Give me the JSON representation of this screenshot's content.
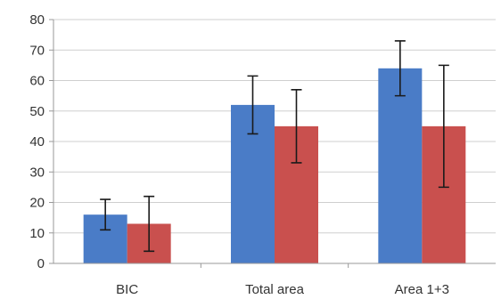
{
  "chart_data": {
    "type": "bar",
    "title": "",
    "xlabel": "",
    "ylabel": "",
    "categories": [
      "BIC",
      "Total area",
      "Area 1+3"
    ],
    "ylim": [
      0,
      80
    ],
    "yticks": [
      0,
      10,
      20,
      30,
      40,
      50,
      60,
      70,
      80
    ],
    "grid": true,
    "legend": "none",
    "series": [
      {
        "color": "#4a7cc7",
        "values": [
          16,
          52,
          64
        ],
        "errors": [
          5,
          9.5,
          9
        ]
      },
      {
        "color": "#c9504e",
        "values": [
          13,
          45,
          45
        ],
        "errors": [
          9,
          12,
          20
        ]
      }
    ]
  }
}
